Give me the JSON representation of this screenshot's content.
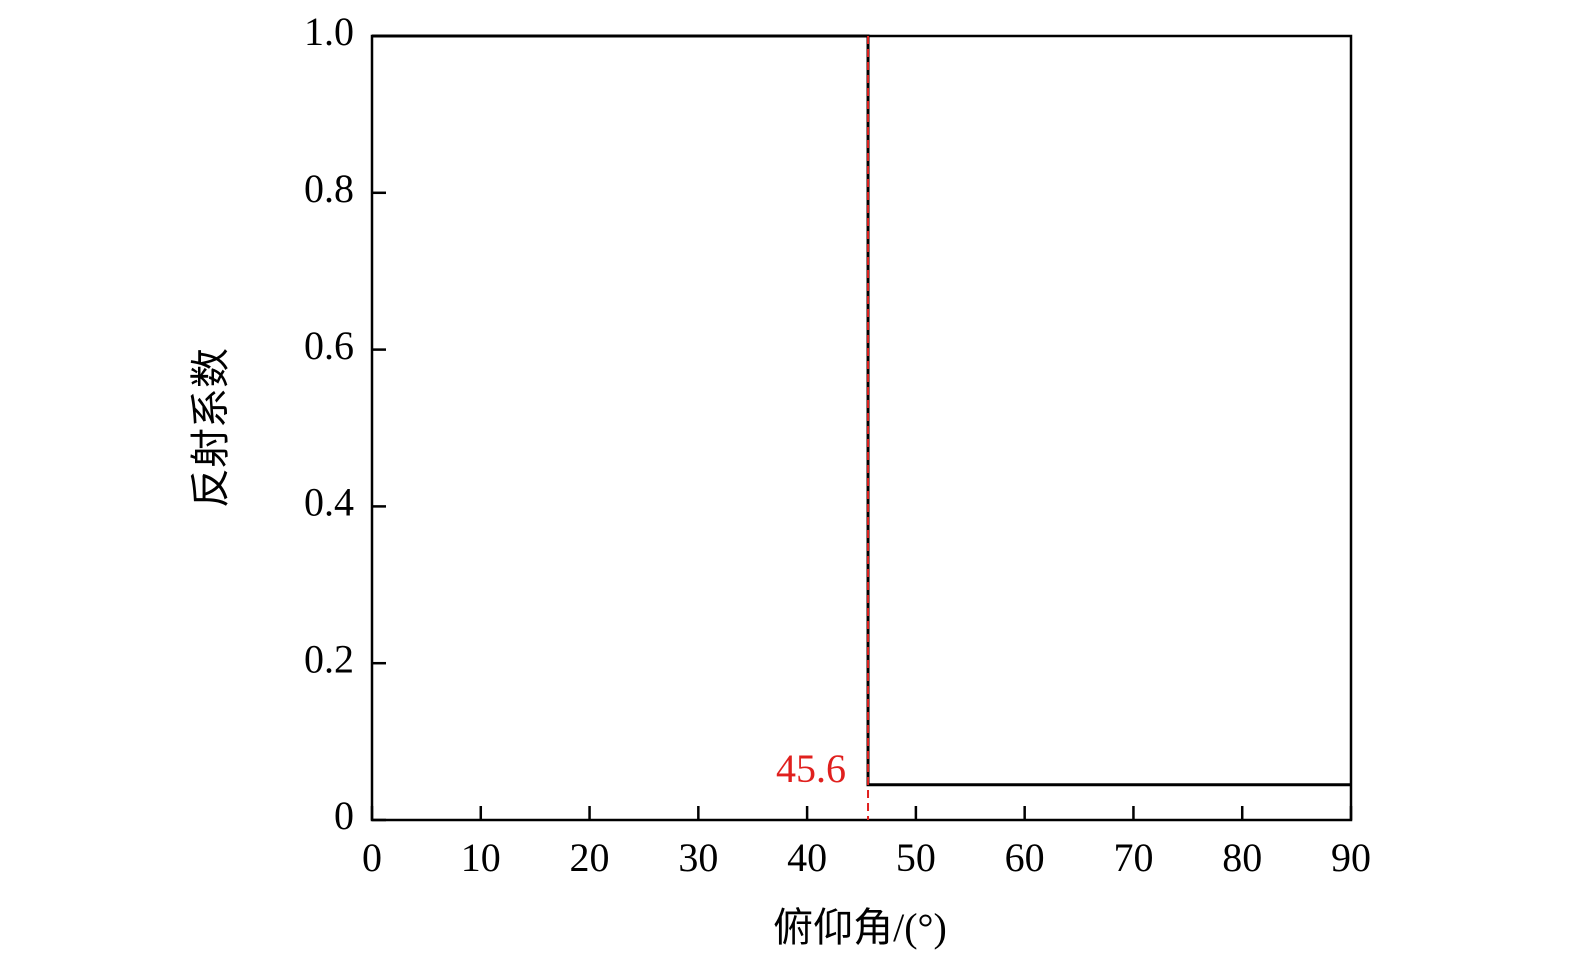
{
  "chart_data": {
    "type": "line",
    "x_label": "俯仰角/(°)",
    "y_label": "反射系数",
    "x": [
      0,
      45.6,
      45.6,
      90
    ],
    "values": [
      1,
      1,
      0.045,
      0.045
    ],
    "color": "#000000",
    "xlim": [
      0,
      90
    ],
    "xticks": [
      0,
      10,
      20,
      30,
      40,
      50,
      60,
      70,
      80,
      90
    ],
    "ylim": [
      0,
      1
    ],
    "yticks": [
      0,
      0.2,
      0.4,
      0.6,
      0.8,
      {
        "value": 1,
        "label": "1.0"
      }
    ],
    "grid": false,
    "vline": {
      "x": 45.6,
      "color": "#e0201e"
    }
  }
}
